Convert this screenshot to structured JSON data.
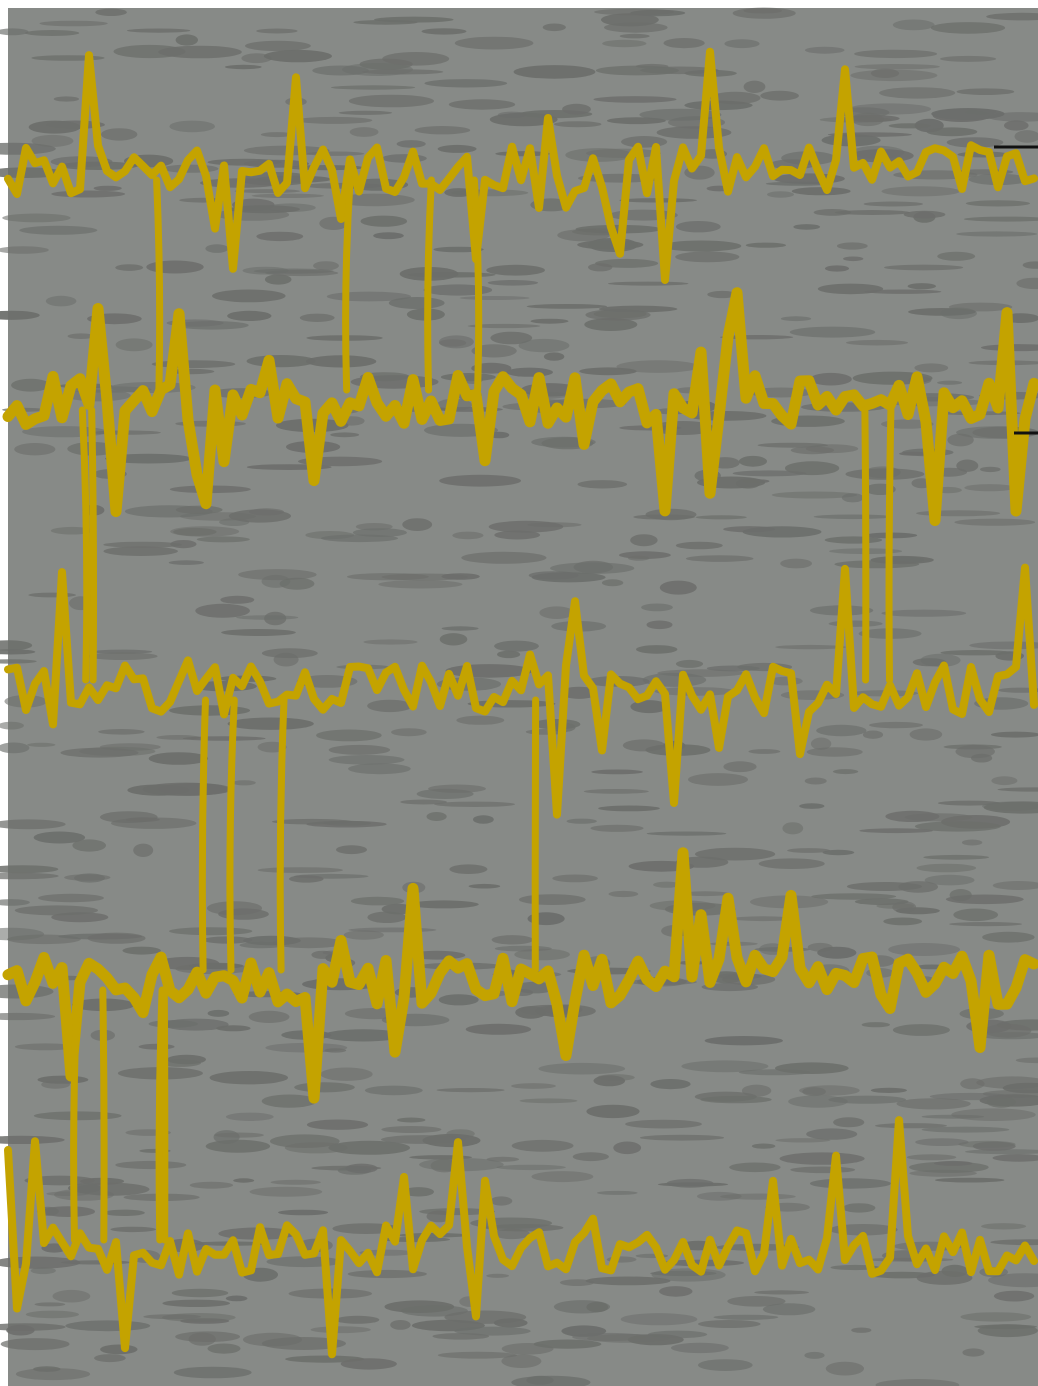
{
  "image": {
    "subject": "",
    "colors": {
      "frame": "#ffffff",
      "background": "#878a87",
      "mottle": "#6c6e6b",
      "wave": "#c4a300",
      "marker": "#111111"
    }
  }
}
